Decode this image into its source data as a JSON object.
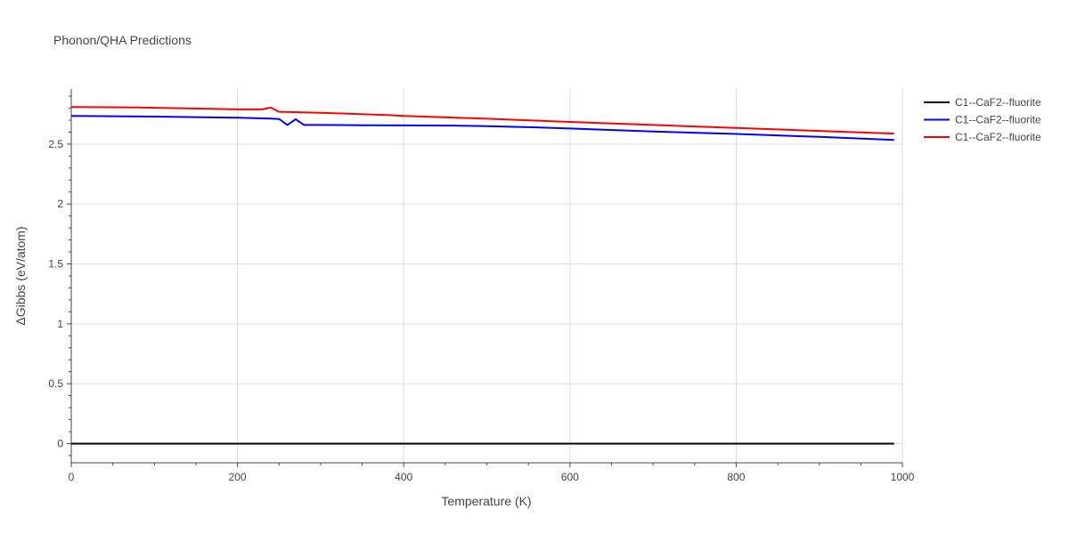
{
  "chart_data": {
    "type": "line",
    "title": "Phonon/QHA Predictions",
    "xlabel": "Temperature (K)",
    "ylabel": "ΔGibbs (eV/atom)",
    "xlim": [
      0,
      1000
    ],
    "ylim": [
      -0.16,
      2.96
    ],
    "x_ticks": [
      0,
      200,
      400,
      600,
      800,
      1000
    ],
    "x_tick_labels": [
      "0",
      "200",
      "400",
      "600",
      "800",
      "1000"
    ],
    "y_ticks": [
      0,
      0.5,
      1,
      1.5,
      2,
      2.5
    ],
    "y_tick_labels": [
      "0",
      "0.5",
      "1",
      "1.5",
      "2",
      "2.5"
    ],
    "grid": true,
    "legend_position": "top-right",
    "series": [
      {
        "name": "C1--CaF2--fluorite",
        "color": "#000000",
        "x": [
          0,
          990
        ],
        "y": [
          0,
          0
        ]
      },
      {
        "name": "C1--CaF2--fluorite",
        "color": "#0000ff",
        "x": [
          0,
          100,
          200,
          240,
          250,
          260,
          270,
          280,
          300,
          350,
          400,
          460,
          500,
          560,
          600,
          700,
          800,
          900,
          990
        ],
        "y": [
          2.735,
          2.73,
          2.72,
          2.713,
          2.71,
          2.66,
          2.708,
          2.66,
          2.66,
          2.658,
          2.656,
          2.655,
          2.65,
          2.64,
          2.63,
          2.605,
          2.585,
          2.56,
          2.535
        ]
      },
      {
        "name": "C1--CaF2--fluorite",
        "color": "#ff0000",
        "x": [
          0,
          80,
          200,
          230,
          240,
          250,
          300,
          380,
          400,
          500,
          600,
          700,
          800,
          900,
          990
        ],
        "y": [
          2.81,
          2.806,
          2.79,
          2.79,
          2.805,
          2.77,
          2.762,
          2.742,
          2.735,
          2.712,
          2.685,
          2.66,
          2.635,
          2.61,
          2.588
        ]
      }
    ]
  }
}
